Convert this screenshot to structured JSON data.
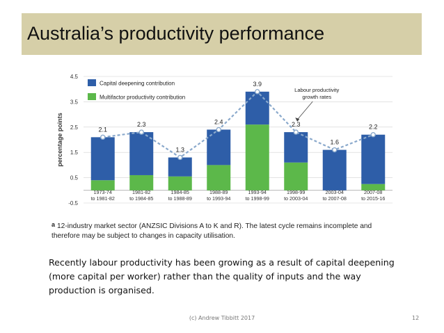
{
  "slide": {
    "title": "Australia’s productivity performance",
    "footnote_marker": "a",
    "footnote": "12-industry market sector (ANZSIC Divisions A to K and R). The latest cycle remains incomplete and therefore may be subject to changes in capacity utilisation.",
    "body": "Recently labour productivity has been growing as a result of capital deepening (more capital per worker) rather than the quality of inputs and the way production is organised.",
    "footer": "(c) Andrew Tibbitt 2017",
    "page_number": "12"
  },
  "chart_data": {
    "type": "bar",
    "stacked": true,
    "ylabel": "percentage points",
    "ylim": [
      -0.5,
      4.5
    ],
    "yticks": [
      "-0.5",
      "0.5",
      "1.5",
      "2.5",
      "3.5",
      "4.5"
    ],
    "ytick_values": [
      -0.5,
      0.5,
      1.5,
      2.5,
      3.5,
      4.5
    ],
    "categories": [
      [
        "1973-74",
        "to 1981-82"
      ],
      [
        "1981-82",
        "to 1984-85"
      ],
      [
        "1984-85",
        "to 1988-89"
      ],
      [
        "1988-89",
        "to 1993-94"
      ],
      [
        "1993-94",
        "to 1998-99"
      ],
      [
        "1998-99",
        "to 2003-04"
      ],
      [
        "2003-04",
        "to 2007-08"
      ],
      [
        "2007-08",
        "to 2015-16"
      ]
    ],
    "series": [
      {
        "name": "Multifactor productivity contribution",
        "color": "#5cb84a",
        "values": [
          0.4,
          0.6,
          0.55,
          1.0,
          2.6,
          1.1,
          0.0,
          0.25
        ]
      },
      {
        "name": "Capital deepening contribution",
        "color": "#2e5ea8",
        "values": [
          1.7,
          1.7,
          0.75,
          1.4,
          1.3,
          1.2,
          1.6,
          1.95
        ]
      }
    ],
    "line": {
      "name": "Labour productivity growth rates",
      "name_lines": [
        "Labour productivity",
        "growth rates"
      ],
      "values": [
        2.1,
        2.3,
        1.3,
        2.4,
        3.9,
        2.3,
        1.6,
        2.2
      ],
      "labels": [
        "2.1",
        "2.3",
        "1.3",
        "2.4",
        "3.9",
        "2.3",
        "1.6",
        "2.2"
      ],
      "color": "#8aa9cc"
    },
    "legend_position": "top-left"
  }
}
